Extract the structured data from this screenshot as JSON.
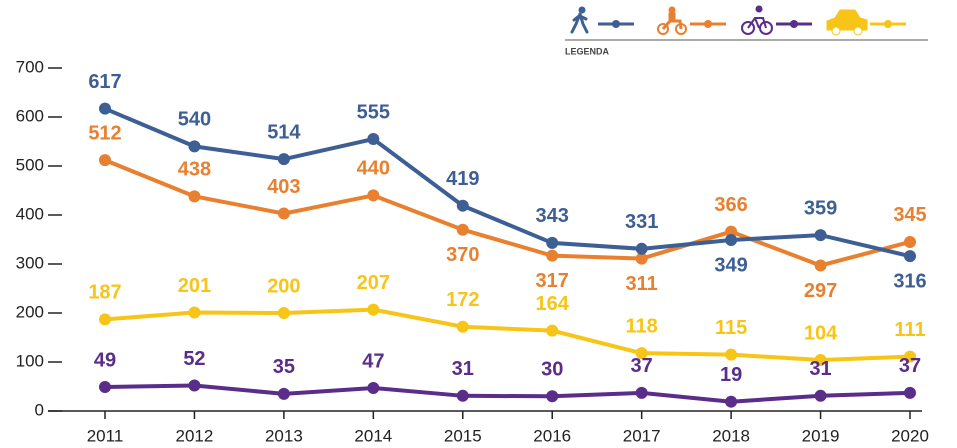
{
  "chart_data": {
    "type": "line",
    "legend_title": "LEGENDA",
    "categories": [
      "2011",
      "2012",
      "2013",
      "2014",
      "2015",
      "2016",
      "2017",
      "2018",
      "2019",
      "2020"
    ],
    "series": [
      {
        "color": "#3d5f94",
        "values": [
          617,
          540,
          514,
          555,
          419,
          343,
          331,
          349,
          359,
          316
        ]
      },
      {
        "color": "#e8802f",
        "values": [
          512,
          438,
          403,
          440,
          370,
          317,
          311,
          366,
          297,
          345
        ]
      },
      {
        "color": "#5a2d8a",
        "values": [
          49,
          52,
          35,
          47,
          31,
          30,
          37,
          19,
          31,
          37
        ]
      },
      {
        "color": "#f7c518",
        "values": [
          187,
          201,
          200,
          207,
          172,
          164,
          118,
          115,
          104,
          111
        ]
      }
    ],
    "ylim": [
      0,
      700
    ],
    "yticks": [
      0,
      100,
      200,
      300,
      400,
      500,
      600,
      700
    ]
  }
}
